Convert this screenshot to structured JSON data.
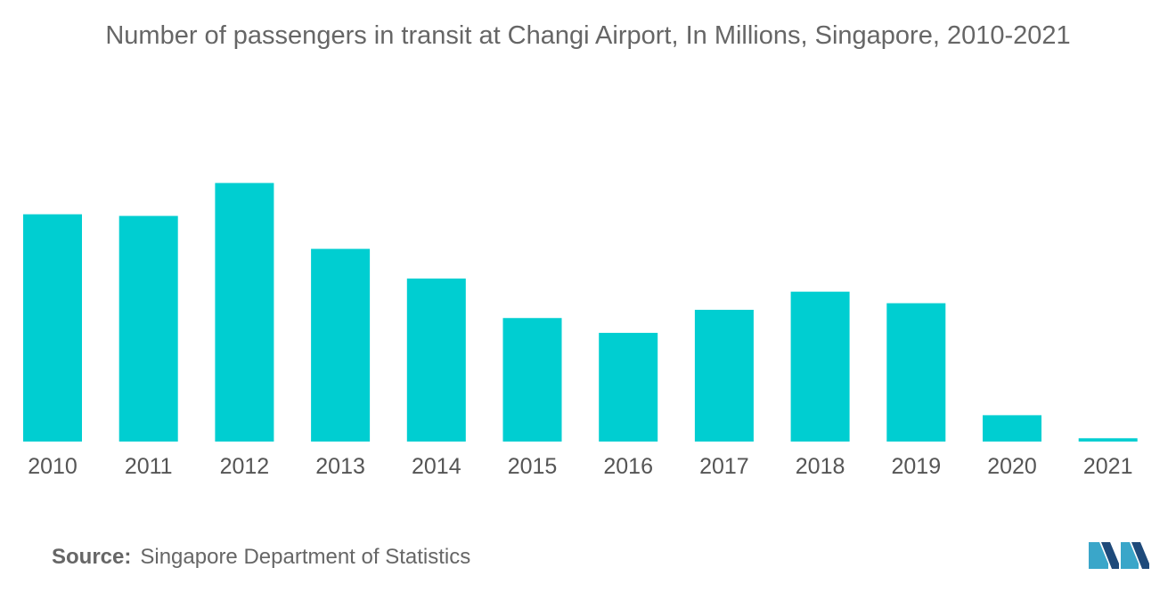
{
  "source": {
    "label": "Source:",
    "text": "Singapore Department of Statistics"
  },
  "colors": {
    "bar": "#00ced1",
    "axis_text": "#555555",
    "logo_dark": "#1e4a7a",
    "logo_light": "#3aa6c9"
  },
  "chart_data": {
    "type": "bar",
    "title": "Number of passengers in transit at Changi Airport, In Millions, Singapore, 2010-2021",
    "xlabel": "",
    "ylabel": "",
    "categories": [
      "2010",
      "2011",
      "2012",
      "2013",
      "2014",
      "2015",
      "2016",
      "2017",
      "2018",
      "2019",
      "2020",
      "2021"
    ],
    "values": [
      6.9,
      6.85,
      7.85,
      5.85,
      4.95,
      3.75,
      3.3,
      4.0,
      4.55,
      4.2,
      0.8,
      0.1
    ],
    "ylim": [
      0,
      10
    ],
    "grid": false,
    "legend": "none"
  }
}
